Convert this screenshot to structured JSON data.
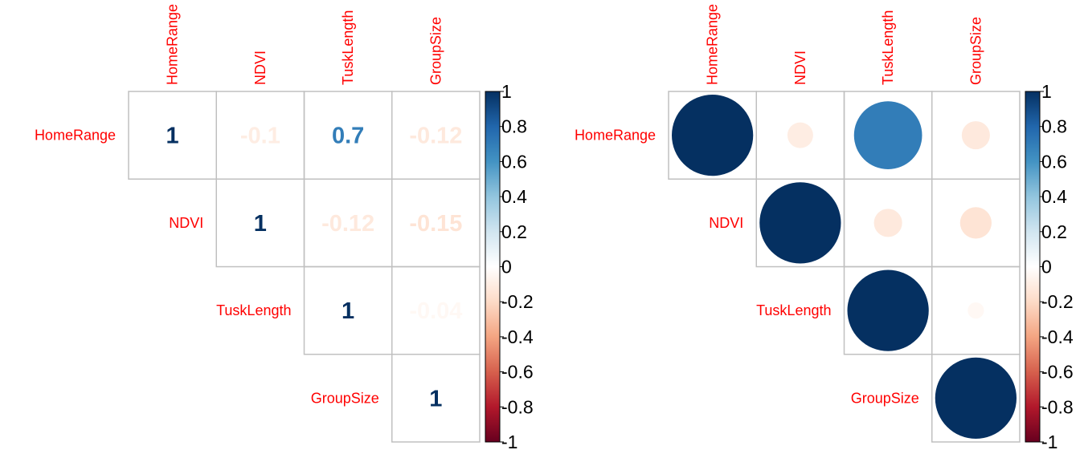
{
  "chart_data": [
    {
      "type": "heatmap",
      "method": "number",
      "matrix_shape": "upper",
      "variables": [
        "HomeRange",
        "NDVI",
        "TuskLength",
        "GroupSize"
      ],
      "values": [
        [
          1,
          -0.1,
          0.7,
          -0.12
        ],
        [
          null,
          1,
          -0.12,
          -0.15
        ],
        [
          null,
          null,
          1,
          -0.04
        ],
        [
          null,
          null,
          null,
          1
        ]
      ],
      "value_labels": [
        [
          "1",
          "-0.1",
          "0.7",
          "-0.12"
        ],
        [
          null,
          "1",
          "-0.12",
          "-0.15"
        ],
        [
          null,
          null,
          "1",
          "-0.04"
        ],
        [
          null,
          null,
          null,
          "1"
        ]
      ],
      "label_color": "#ff0000",
      "colorbar": {
        "range": [
          -1,
          1
        ],
        "ticks": [
          "-1",
          "-0.8",
          "-0.6",
          "-0.4",
          "-0.2",
          "0",
          "0.2",
          "0.4",
          "0.6",
          "0.8",
          "1"
        ],
        "placement": "right"
      }
    },
    {
      "type": "heatmap",
      "method": "circle",
      "matrix_shape": "upper",
      "variables": [
        "HomeRange",
        "NDVI",
        "TuskLength",
        "GroupSize"
      ],
      "values": [
        [
          1,
          -0.1,
          0.7,
          -0.12
        ],
        [
          null,
          1,
          -0.12,
          -0.15
        ],
        [
          null,
          null,
          1,
          -0.04
        ],
        [
          null,
          null,
          null,
          1
        ]
      ],
      "label_color": "#ff0000",
      "colorbar": {
        "range": [
          -1,
          1
        ],
        "ticks": [
          "-1",
          "-0.8",
          "-0.6",
          "-0.4",
          "-0.2",
          "0",
          "0.2",
          "0.4",
          "0.6",
          "0.8",
          "1"
        ],
        "placement": "right"
      }
    }
  ],
  "palette": {
    "stops": [
      [
        -1,
        "#67001F"
      ],
      [
        -0.8,
        "#B2182B"
      ],
      [
        -0.6,
        "#D6604D"
      ],
      [
        -0.4,
        "#F4A582"
      ],
      [
        -0.2,
        "#FDDBC7"
      ],
      [
        0,
        "#FFFFFF"
      ],
      [
        0.2,
        "#D1E5F0"
      ],
      [
        0.4,
        "#92C5DE"
      ],
      [
        0.6,
        "#4393C3"
      ],
      [
        0.8,
        "#2166AC"
      ],
      [
        1,
        "#053061"
      ]
    ],
    "grid_color": "#c0c0c0"
  }
}
